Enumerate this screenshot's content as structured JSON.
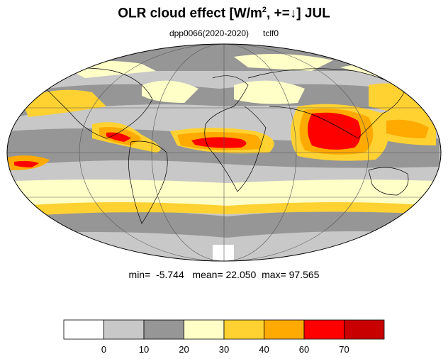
{
  "title": {
    "text_before": "OLR cloud effect [W/m",
    "superscript": "2",
    "text_after": ", +=↓]  JUL"
  },
  "subtitle": {
    "experiment": "dpp0066(2020-2020)",
    "variable": "tclf0"
  },
  "stats": {
    "min_label": "min=",
    "min": "-5.744",
    "mean_label": "mean=",
    "mean": "22.050",
    "max_label": "max=",
    "max": "97.565"
  },
  "colorbar": {
    "levels": [
      0,
      10,
      20,
      30,
      40,
      60,
      70
    ],
    "tick_labels": [
      "0",
      "10",
      "20",
      "30",
      "40",
      "60",
      "70"
    ],
    "colors": [
      "#ffffff",
      "#c8c8c8",
      "#969696",
      "#ffffc8",
      "#ffd232",
      "#ffaa00",
      "#ff0000",
      "#c80000"
    ]
  },
  "map": {
    "projection": "mollweide",
    "ocean_background": "#c8c8c8",
    "coastline_color": "#000000",
    "grid_color": "#555555"
  }
}
